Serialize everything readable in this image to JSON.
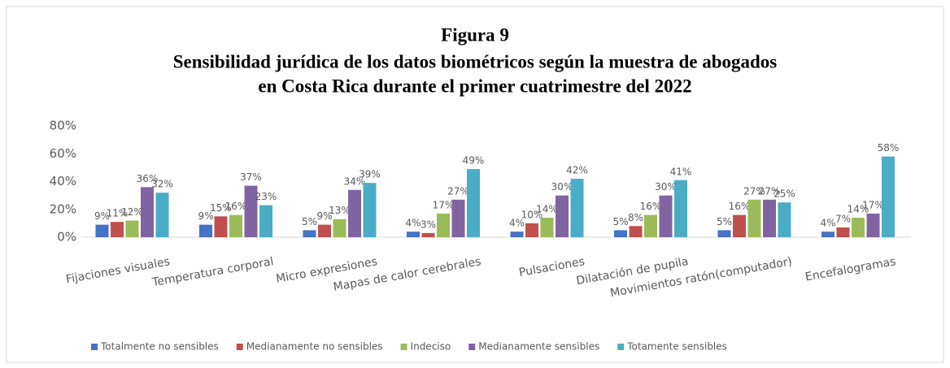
{
  "chart_data": {
    "type": "bar",
    "title": "Figura 9",
    "subtitle": [
      "Sensibilidad jurídica  de los datos biométricos según la muestra de abogados",
      "en Costa Rica durante el primer cuatrimestre del 2022"
    ],
    "categories": [
      "Fijaciones visuales",
      "Temperatura corporal",
      "Micro expresiones",
      "Mapas de calor cerebrales",
      "Pulsaciones",
      "Dilatación de pupila",
      "Movimientos ratón(computador)",
      "Encefalogramas"
    ],
    "series": [
      {
        "name": "Totalmente no sensibles",
        "color": "#4472c4",
        "values": [
          9,
          9,
          5,
          4,
          4,
          5,
          5,
          4
        ],
        "value_labels": [
          "9%",
          "9%",
          "5%",
          "4%",
          "4%",
          "5%",
          "5%",
          "4%"
        ]
      },
      {
        "name": "Medianamente no sensibles",
        "color": "#c0504d",
        "values": [
          11,
          15,
          9,
          3,
          10,
          8,
          16,
          7
        ],
        "value_labels": [
          "11%",
          "15%",
          "9%",
          "3%",
          "10%",
          "8%",
          "16%",
          "7%"
        ]
      },
      {
        "name": "Indeciso",
        "color": "#9bbb59",
        "values": [
          12,
          16,
          13,
          17,
          14,
          16,
          27,
          14
        ],
        "value_labels": [
          "12%",
          "16%",
          "13%",
          "17%",
          "14%",
          "16%",
          "27%",
          "14%"
        ]
      },
      {
        "name": "Medianamente sensibles",
        "color": "#8064a2",
        "values": [
          36,
          37,
          34,
          27,
          30,
          30,
          27,
          17
        ],
        "value_labels": [
          "36%",
          "37%",
          "34%",
          "27%",
          "30%",
          "30%",
          "27%",
          "17%"
        ]
      },
      {
        "name": "Totamente sensibles",
        "color": "#4bacc6",
        "values": [
          32,
          23,
          39,
          49,
          42,
          41,
          25,
          58
        ],
        "value_labels": [
          "32%",
          "23%",
          "39%",
          "49%",
          "42%",
          "41%",
          "25%",
          "58%"
        ]
      }
    ],
    "ylim": [
      0,
      80
    ],
    "yticks": [
      {
        "value": 0,
        "label": "0%"
      },
      {
        "value": 20,
        "label": "20%"
      },
      {
        "value": 40,
        "label": "40%"
      },
      {
        "value": 60,
        "label": "60%"
      },
      {
        "value": 80,
        "label": "80%"
      }
    ],
    "legend": "bottom"
  }
}
